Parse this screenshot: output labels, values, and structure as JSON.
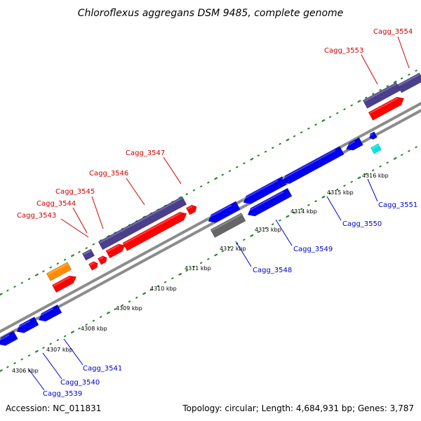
{
  "title": "Chloroflexus aggregans DSM 9485, complete genome",
  "footer": {
    "accession": "Accession: NC_011831",
    "summary": "Topology: circular; Length: 4,684,931 bp; Genes: 3,787"
  },
  "colors": {
    "background": "#ffffff",
    "dots": "#1f8a1f",
    "backbone": "#8c8c8c",
    "label_upper": "#cc0000",
    "label_lower": "#0000cc",
    "forward_gene": "#4a3f8c",
    "rna_gene": "#ff0000",
    "reverse_gene": "#0000ee",
    "other_gene": "#666666",
    "orange_gene": "#ff8c00",
    "cyan_gene": "#00e5e5"
  },
  "kbp_ticks": [
    "4306 kbp",
    "4307 kbp",
    "4308 kbp",
    "4309 kbp",
    "4310 kbp",
    "4311 kbp",
    "4312 kbp",
    "4313 kbp",
    "4314 kbp",
    "4315 kbp",
    "4316 kbp"
  ],
  "genes_upper": [
    {
      "label": "Cagg_3543"
    },
    {
      "label": "Cagg_3544"
    },
    {
      "label": "Cagg_3545"
    },
    {
      "label": "Cagg_3546"
    },
    {
      "label": "Cagg_3547"
    },
    {
      "label": "Cagg_3553"
    },
    {
      "label": "Cagg_3554"
    }
  ],
  "genes_lower": [
    {
      "label": "Cagg_3539"
    },
    {
      "label": "Cagg_3540"
    },
    {
      "label": "Cagg_3541"
    },
    {
      "label": "Cagg_3548"
    },
    {
      "label": "Cagg_3549"
    },
    {
      "label": "Cagg_3550"
    },
    {
      "label": "Cagg_3551"
    }
  ]
}
